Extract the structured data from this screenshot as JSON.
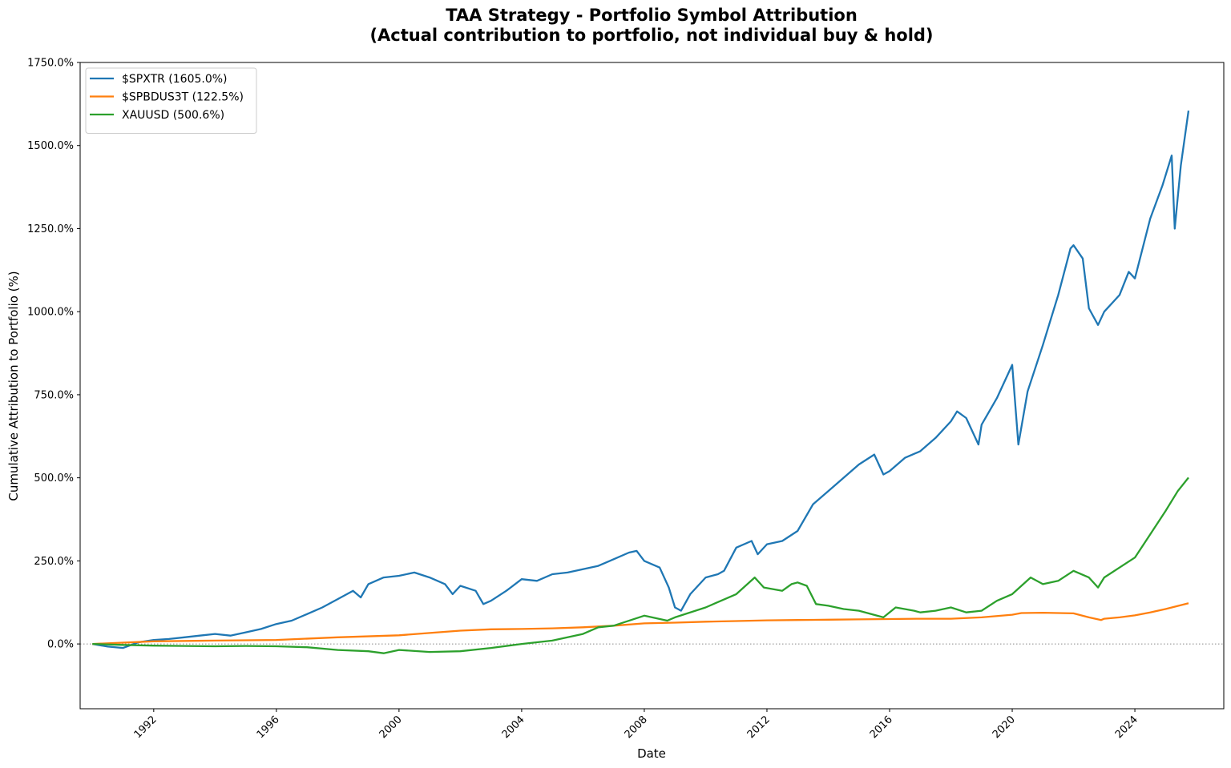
{
  "chart_data": {
    "type": "line",
    "title": "TAA Strategy - Portfolio Symbol Attribution",
    "subtitle": "(Actual contribution to portfolio, not individual buy & hold)",
    "xlabel": "Date",
    "ylabel": "Cumulative Attribution to Portfolio (%)",
    "xlim": [
      1989.6,
      2026.9
    ],
    "ylim": [
      -195,
      1750
    ],
    "x_ticks": [
      1992,
      1996,
      2000,
      2004,
      2008,
      2012,
      2016,
      2020,
      2024
    ],
    "x_tick_labels": [
      "1992",
      "1996",
      "2000",
      "2004",
      "2008",
      "2012",
      "2016",
      "2020",
      "2024"
    ],
    "y_ticks": [
      0,
      250,
      500,
      750,
      1000,
      1250,
      1500,
      1750
    ],
    "y_tick_labels": [
      "0.0%",
      "250.0%",
      "500.0%",
      "750.0%",
      "1000.0%",
      "1250.0%",
      "1500.0%",
      "1750.0%"
    ],
    "zero_line": true,
    "grid": false,
    "legend_position": "top-left",
    "series": [
      {
        "name": "$SPXTR (1605.0%)",
        "color": "#1f77b4",
        "points": [
          [
            1990.0,
            0
          ],
          [
            1990.5,
            -8
          ],
          [
            1991.0,
            -12
          ],
          [
            1991.5,
            5
          ],
          [
            1992.0,
            12
          ],
          [
            1992.5,
            15
          ],
          [
            1993.0,
            20
          ],
          [
            1993.5,
            25
          ],
          [
            1994.0,
            30
          ],
          [
            1994.5,
            25
          ],
          [
            1995.0,
            35
          ],
          [
            1995.5,
            45
          ],
          [
            1996.0,
            60
          ],
          [
            1996.5,
            70
          ],
          [
            1997.0,
            90
          ],
          [
            1997.5,
            110
          ],
          [
            1998.0,
            135
          ],
          [
            1998.5,
            160
          ],
          [
            1998.75,
            140
          ],
          [
            1999.0,
            180
          ],
          [
            1999.5,
            200
          ],
          [
            2000.0,
            205
          ],
          [
            2000.5,
            215
          ],
          [
            2001.0,
            200
          ],
          [
            2001.5,
            180
          ],
          [
            2001.75,
            150
          ],
          [
            2002.0,
            175
          ],
          [
            2002.5,
            160
          ],
          [
            2002.75,
            120
          ],
          [
            2003.0,
            130
          ],
          [
            2003.5,
            160
          ],
          [
            2004.0,
            195
          ],
          [
            2004.5,
            190
          ],
          [
            2005.0,
            210
          ],
          [
            2005.5,
            215
          ],
          [
            2006.0,
            225
          ],
          [
            2006.5,
            235
          ],
          [
            2007.0,
            255
          ],
          [
            2007.5,
            275
          ],
          [
            2007.75,
            280
          ],
          [
            2008.0,
            250
          ],
          [
            2008.5,
            230
          ],
          [
            2008.8,
            170
          ],
          [
            2009.0,
            110
          ],
          [
            2009.2,
            100
          ],
          [
            2009.5,
            150
          ],
          [
            2010.0,
            200
          ],
          [
            2010.4,
            210
          ],
          [
            2010.6,
            220
          ],
          [
            2011.0,
            290
          ],
          [
            2011.5,
            310
          ],
          [
            2011.7,
            270
          ],
          [
            2012.0,
            300
          ],
          [
            2012.5,
            310
          ],
          [
            2013.0,
            340
          ],
          [
            2013.5,
            420
          ],
          [
            2014.0,
            460
          ],
          [
            2014.5,
            500
          ],
          [
            2015.0,
            540
          ],
          [
            2015.5,
            570
          ],
          [
            2015.8,
            510
          ],
          [
            2016.0,
            520
          ],
          [
            2016.5,
            560
          ],
          [
            2017.0,
            580
          ],
          [
            2017.5,
            620
          ],
          [
            2018.0,
            670
          ],
          [
            2018.2,
            700
          ],
          [
            2018.5,
            680
          ],
          [
            2018.9,
            600
          ],
          [
            2019.0,
            660
          ],
          [
            2019.5,
            740
          ],
          [
            2020.0,
            840
          ],
          [
            2020.2,
            600
          ],
          [
            2020.5,
            760
          ],
          [
            2021.0,
            900
          ],
          [
            2021.5,
            1050
          ],
          [
            2021.9,
            1190
          ],
          [
            2022.0,
            1200
          ],
          [
            2022.3,
            1160
          ],
          [
            2022.5,
            1010
          ],
          [
            2022.8,
            960
          ],
          [
            2023.0,
            1000
          ],
          [
            2023.5,
            1050
          ],
          [
            2023.8,
            1120
          ],
          [
            2024.0,
            1100
          ],
          [
            2024.5,
            1280
          ],
          [
            2024.9,
            1380
          ],
          [
            2025.2,
            1470
          ],
          [
            2025.3,
            1250
          ],
          [
            2025.5,
            1440
          ],
          [
            2025.75,
            1605
          ]
        ]
      },
      {
        "name": "$SPBDUS3T (122.5%)",
        "color": "#ff7f0e",
        "points": [
          [
            1990.0,
            0
          ],
          [
            1992.0,
            8
          ],
          [
            1994.0,
            10
          ],
          [
            1996.0,
            12
          ],
          [
            1998.0,
            20
          ],
          [
            2000.0,
            26
          ],
          [
            2001.0,
            33
          ],
          [
            2002.0,
            40
          ],
          [
            2003.0,
            44
          ],
          [
            2004.0,
            45
          ],
          [
            2005.0,
            47
          ],
          [
            2006.0,
            50
          ],
          [
            2007.0,
            55
          ],
          [
            2008.0,
            62
          ],
          [
            2009.0,
            64
          ],
          [
            2010.0,
            67
          ],
          [
            2011.0,
            69
          ],
          [
            2012.0,
            71
          ],
          [
            2013.0,
            72
          ],
          [
            2014.0,
            73
          ],
          [
            2015.0,
            74
          ],
          [
            2016.0,
            75
          ],
          [
            2017.0,
            76
          ],
          [
            2018.0,
            76
          ],
          [
            2019.0,
            80
          ],
          [
            2020.0,
            88
          ],
          [
            2020.3,
            93
          ],
          [
            2021.0,
            94
          ],
          [
            2022.0,
            92
          ],
          [
            2022.5,
            80
          ],
          [
            2022.9,
            72
          ],
          [
            2023.0,
            76
          ],
          [
            2023.5,
            80
          ],
          [
            2024.0,
            86
          ],
          [
            2024.5,
            95
          ],
          [
            2025.0,
            105
          ],
          [
            2025.75,
            122.5
          ]
        ]
      },
      {
        "name": "XAUUSD (500.6%)",
        "color": "#2ca02c",
        "points": [
          [
            1990.0,
            0
          ],
          [
            1991.0,
            -3
          ],
          [
            1992.0,
            -5
          ],
          [
            1993.0,
            -6
          ],
          [
            1994.0,
            -7
          ],
          [
            1995.0,
            -6
          ],
          [
            1996.0,
            -7
          ],
          [
            1997.0,
            -10
          ],
          [
            1998.0,
            -18
          ],
          [
            1999.0,
            -22
          ],
          [
            1999.5,
            -28
          ],
          [
            2000.0,
            -18
          ],
          [
            2001.0,
            -24
          ],
          [
            2002.0,
            -22
          ],
          [
            2003.0,
            -12
          ],
          [
            2004.0,
            0
          ],
          [
            2005.0,
            10
          ],
          [
            2006.0,
            30
          ],
          [
            2006.5,
            50
          ],
          [
            2007.0,
            55
          ],
          [
            2008.0,
            85
          ],
          [
            2008.75,
            70
          ],
          [
            2009.0,
            80
          ],
          [
            2010.0,
            110
          ],
          [
            2010.5,
            130
          ],
          [
            2011.0,
            150
          ],
          [
            2011.6,
            200
          ],
          [
            2011.9,
            170
          ],
          [
            2012.5,
            160
          ],
          [
            2012.8,
            180
          ],
          [
            2013.0,
            185
          ],
          [
            2013.3,
            175
          ],
          [
            2013.6,
            120
          ],
          [
            2014.0,
            115
          ],
          [
            2014.5,
            105
          ],
          [
            2015.0,
            100
          ],
          [
            2015.8,
            80
          ],
          [
            2016.2,
            110
          ],
          [
            2016.8,
            100
          ],
          [
            2017.0,
            95
          ],
          [
            2017.5,
            100
          ],
          [
            2018.0,
            110
          ],
          [
            2018.5,
            95
          ],
          [
            2019.0,
            100
          ],
          [
            2019.5,
            130
          ],
          [
            2020.0,
            150
          ],
          [
            2020.6,
            200
          ],
          [
            2021.0,
            180
          ],
          [
            2021.5,
            190
          ],
          [
            2022.0,
            220
          ],
          [
            2022.5,
            200
          ],
          [
            2022.8,
            170
          ],
          [
            2023.0,
            200
          ],
          [
            2023.5,
            230
          ],
          [
            2024.0,
            260
          ],
          [
            2024.5,
            330
          ],
          [
            2025.0,
            400
          ],
          [
            2025.4,
            460
          ],
          [
            2025.75,
            500.6
          ]
        ]
      }
    ]
  }
}
